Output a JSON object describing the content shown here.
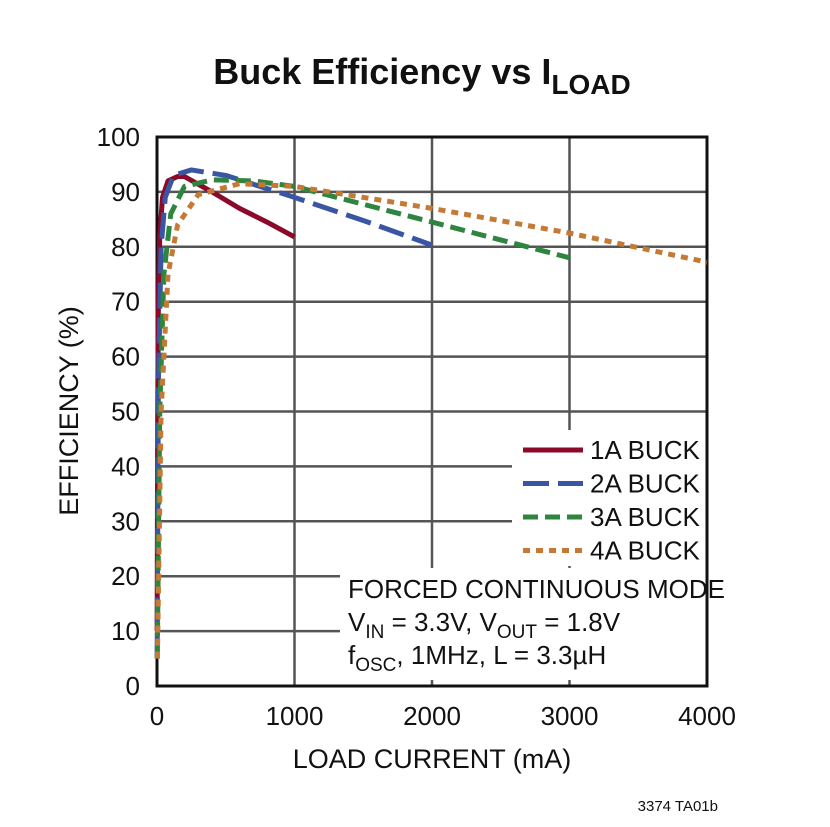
{
  "chart_data": {
    "type": "line",
    "title": "Buck Efficiency vs I",
    "title_subscript": "LOAD",
    "xlabel": "LOAD CURRENT (mA)",
    "ylabel": "EFFICIENCY (%)",
    "xlim": [
      0,
      4000
    ],
    "ylim": [
      0,
      100
    ],
    "xticks": [
      0,
      1000,
      2000,
      3000,
      4000
    ],
    "yticks": [
      0,
      10,
      20,
      30,
      40,
      50,
      60,
      70,
      80,
      90,
      100
    ],
    "grid": true,
    "legend_placement": "lower-right",
    "series": [
      {
        "name": "1A BUCK",
        "color": "#8b0a2a",
        "dash": "solid",
        "x": [
          1,
          5,
          10,
          20,
          40,
          80,
          150,
          200,
          400,
          600,
          800,
          1000
        ],
        "y": [
          10,
          50,
          70,
          82,
          89,
          92,
          92.8,
          92.8,
          90,
          87,
          84.5,
          81.8
        ]
      },
      {
        "name": "2A BUCK",
        "color": "#3a55a4",
        "dash": "long-dash",
        "x": [
          1,
          10,
          30,
          60,
          120,
          250,
          500,
          1000,
          1500,
          2000
        ],
        "y": [
          5,
          55,
          80,
          89,
          93,
          94,
          93,
          89,
          84.8,
          80.3
        ]
      },
      {
        "name": "3A BUCK",
        "color": "#2e8540",
        "dash": "dash",
        "x": [
          2,
          20,
          50,
          100,
          200,
          400,
          700,
          1000,
          2000,
          3000
        ],
        "y": [
          5,
          50,
          75,
          86,
          91,
          92.2,
          92,
          91,
          84.5,
          78
        ]
      },
      {
        "name": "4A BUCK",
        "color": "#c47a35",
        "dash": "dot",
        "x": [
          3,
          30,
          80,
          150,
          300,
          600,
          1000,
          2000,
          3000,
          4000
        ],
        "y": [
          5,
          50,
          75,
          84,
          89.5,
          91.5,
          91,
          87,
          82.5,
          77.2
        ]
      }
    ],
    "annotations": [
      {
        "text": "FORCED CONTINUOUS MODE"
      },
      {
        "parts": [
          [
            "V",
            ""
          ],
          [
            "IN",
            "sub"
          ],
          [
            " = 3.3V, V",
            ""
          ],
          [
            "OUT",
            "sub"
          ],
          [
            " = 1.8V",
            ""
          ]
        ]
      },
      {
        "parts": [
          [
            "f",
            ""
          ],
          [
            "OSC",
            "sub"
          ],
          [
            ", = 1MHz, L = 3.3µH",
            ""
          ]
        ]
      }
    ],
    "footnote": "3374 TA01b"
  }
}
